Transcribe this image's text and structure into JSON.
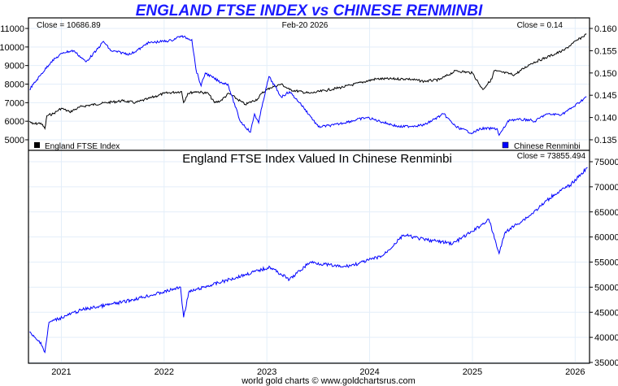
{
  "chart_data": [
    {
      "type": "line",
      "title": "ENGLAND FTSE INDEX vs CHINESE RENMINBI",
      "date_label": "Feb-20  2026",
      "close_left": "Close = 10686.89",
      "close_right": "Close = 0.14",
      "left_axis": {
        "ticks": [
          "5000",
          "6000",
          "7000",
          "8000",
          "9000",
          "10000",
          "11000"
        ],
        "range": [
          5000,
          11000
        ]
      },
      "right_axis": {
        "ticks": [
          "0.135",
          "0.140",
          "0.145",
          "0.150",
          "0.155",
          "0.160"
        ],
        "range": [
          0.135,
          0.16
        ]
      },
      "x_range": [
        2020.68,
        2026.14
      ],
      "grid": true,
      "legend": [
        {
          "label": "England FTSE Index",
          "color": "#000000",
          "placement": "bottom-left"
        },
        {
          "label": "Chinese Renminbi",
          "color": "#0000ff",
          "placement": "bottom-right"
        }
      ],
      "series": [
        {
          "name": "England FTSE Index",
          "axis": "left",
          "color": "#000000",
          "x": [
            2020.69,
            2020.72,
            2020.8,
            2020.84,
            2020.86,
            2020.92,
            2021.0,
            2021.08,
            2021.2,
            2021.44,
            2021.6,
            2021.72,
            2021.84,
            2022.0,
            2022.17,
            2022.19,
            2022.23,
            2022.31,
            2022.43,
            2022.49,
            2022.55,
            2022.63,
            2022.71,
            2022.79,
            2022.91,
            2022.95,
            2023.03,
            2023.14,
            2023.22,
            2023.42,
            2023.74,
            2024.06,
            2024.37,
            2024.53,
            2024.68,
            2024.84,
            2025.0,
            2025.1,
            2025.19,
            2025.21,
            2025.41,
            2025.57,
            2025.73,
            2025.89,
            2025.98,
            2026.11
          ],
          "values": [
            6000,
            5850,
            5900,
            5600,
            6300,
            6400,
            6700,
            6500,
            6800,
            7000,
            7100,
            7000,
            7200,
            7500,
            7600,
            7000,
            7500,
            7600,
            7500,
            7000,
            7100,
            7500,
            7200,
            6900,
            7200,
            7500,
            7800,
            8000,
            7700,
            7500,
            7840,
            8280,
            8280,
            8150,
            8240,
            8720,
            8600,
            7710,
            8280,
            8720,
            8500,
            9110,
            9460,
            9820,
            10210,
            10687
          ]
        },
        {
          "name": "Chinese Renminbi",
          "axis": "right",
          "color": "#0000ff",
          "x": [
            2020.69,
            2020.8,
            2020.9,
            2021.02,
            2021.12,
            2021.24,
            2021.34,
            2021.41,
            2021.48,
            2021.67,
            2021.79,
            2021.83,
            2022.07,
            2022.16,
            2022.27,
            2022.31,
            2022.36,
            2022.4,
            2022.55,
            2022.62,
            2022.74,
            2022.84,
            2022.88,
            2022.92,
            2022.96,
            2023.02,
            2023.14,
            2023.22,
            2023.32,
            2023.42,
            2023.5,
            2023.65,
            2023.97,
            2024.29,
            2024.53,
            2024.72,
            2024.84,
            2025.0,
            2025.08,
            2025.24,
            2025.26,
            2025.36,
            2025.56,
            2025.6,
            2025.71,
            2025.87,
            2025.99,
            2026.11
          ],
          "values": [
            0.1463,
            0.1496,
            0.1525,
            0.1546,
            0.155,
            0.1525,
            0.155,
            0.1571,
            0.155,
            0.1542,
            0.1558,
            0.1567,
            0.1573,
            0.1583,
            0.1575,
            0.1508,
            0.1471,
            0.15,
            0.1479,
            0.1475,
            0.1392,
            0.1367,
            0.1408,
            0.1388,
            0.1433,
            0.1492,
            0.1446,
            0.1458,
            0.1433,
            0.1404,
            0.1379,
            0.1383,
            0.14,
            0.1379,
            0.1383,
            0.1408,
            0.1379,
            0.1365,
            0.1375,
            0.1375,
            0.136,
            0.1395,
            0.1395,
            0.139,
            0.1407,
            0.1407,
            0.1425,
            0.1447
          ]
        }
      ]
    },
    {
      "type": "line",
      "title": "England FTSE Index Valued In Chinese Renminbi",
      "close": "Close = 73855.494",
      "right_axis": {
        "ticks": [
          "35000",
          "40000",
          "45000",
          "50000",
          "55000",
          "60000",
          "65000",
          "70000",
          "75000"
        ],
        "range": [
          35000,
          75000
        ]
      },
      "x_range": [
        2020.68,
        2026.14
      ],
      "x_ticks": [
        "2021",
        "2022",
        "2023",
        "2024",
        "2025",
        "2026"
      ],
      "grid": true,
      "series": [
        {
          "name": "England FTSE Index in CNY",
          "color": "#0000ff",
          "x": [
            2020.69,
            2020.76,
            2020.8,
            2020.84,
            2020.88,
            2021.2,
            2021.59,
            2021.99,
            2022.16,
            2022.19,
            2022.24,
            2022.39,
            2022.79,
            2023.03,
            2023.22,
            2023.42,
            2023.74,
            2023.89,
            2024.13,
            2024.33,
            2024.53,
            2024.81,
            2025.0,
            2025.16,
            2025.26,
            2025.32,
            2025.56,
            2025.79,
            2025.95,
            2026.12
          ],
          "values": [
            41000,
            39500,
            39000,
            37000,
            43000,
            45500,
            47000,
            49000,
            50000,
            44000,
            49000,
            50000,
            52500,
            54000,
            51500,
            55000,
            54000,
            54700,
            56300,
            60400,
            59500,
            58700,
            61100,
            63500,
            56700,
            61000,
            64300,
            68400,
            70300,
            73855
          ]
        }
      ]
    }
  ],
  "footer": "world gold charts © www.goldchartsrus.com"
}
